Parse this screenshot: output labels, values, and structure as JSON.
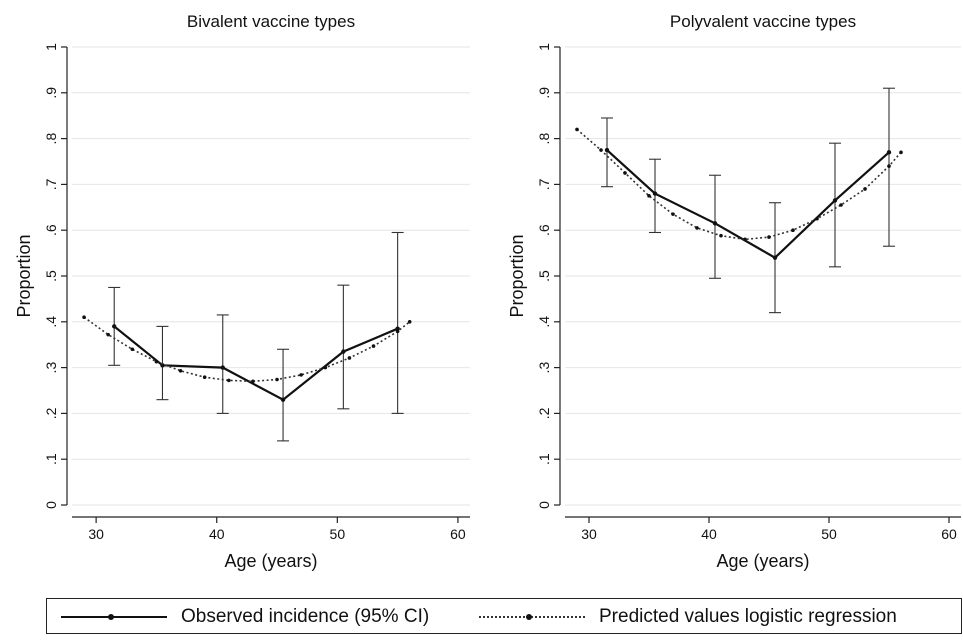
{
  "chart_data": [
    {
      "type": "line",
      "title": "Bivalent vaccine types",
      "xlabel": "Age (years)",
      "ylabel": "Proportion",
      "xlim": [
        28,
        61
      ],
      "ylim": [
        0,
        1
      ],
      "xticks": [
        30,
        40,
        50,
        60
      ],
      "xtick_labels": [
        "30",
        "40",
        "50",
        "60"
      ],
      "yticks": [
        0,
        0.1,
        0.2,
        0.3,
        0.4,
        0.5,
        0.6,
        0.7,
        0.8,
        0.9,
        1
      ],
      "ytick_labels": [
        "0",
        ".1",
        ".2",
        ".3",
        ".4",
        ".5",
        ".6",
        ".7",
        ".8",
        ".9",
        "1"
      ],
      "grid": true,
      "series": [
        {
          "name": "Observed incidence (95% CI)",
          "style": "solid",
          "x": [
            31.5,
            35.5,
            40.5,
            45.5,
            50.5,
            55
          ],
          "y": [
            0.39,
            0.305,
            0.3,
            0.23,
            0.335,
            0.385
          ],
          "ci_low": [
            0.305,
            0.23,
            0.2,
            0.14,
            0.21,
            0.2
          ],
          "ci_high": [
            0.475,
            0.39,
            0.415,
            0.34,
            0.48,
            0.595
          ]
        },
        {
          "name": "Predicted values logistic regression",
          "style": "dotted",
          "x": [
            29,
            31,
            33,
            35,
            37,
            39,
            41,
            43,
            45,
            47,
            49,
            51,
            53,
            55,
            56
          ],
          "y": [
            0.41,
            0.372,
            0.34,
            0.313,
            0.293,
            0.279,
            0.272,
            0.27,
            0.274,
            0.284,
            0.3,
            0.321,
            0.347,
            0.379,
            0.4
          ]
        }
      ]
    },
    {
      "type": "line",
      "title": "Polyvalent vaccine types",
      "xlabel": "Age (years)",
      "ylabel": "Proportion",
      "xlim": [
        28,
        61
      ],
      "ylim": [
        0,
        1
      ],
      "xticks": [
        30,
        40,
        50,
        60
      ],
      "xtick_labels": [
        "30",
        "40",
        "50",
        "60"
      ],
      "yticks": [
        0,
        0.1,
        0.2,
        0.3,
        0.4,
        0.5,
        0.6,
        0.7,
        0.8,
        0.9,
        1
      ],
      "ytick_labels": [
        "0",
        ".1",
        ".2",
        ".3",
        ".4",
        ".5",
        ".6",
        ".7",
        ".8",
        ".9",
        "1"
      ],
      "grid": true,
      "series": [
        {
          "name": "Observed incidence (95% CI)",
          "style": "solid",
          "x": [
            31.5,
            35.5,
            40.5,
            45.5,
            50.5,
            55
          ],
          "y": [
            0.775,
            0.68,
            0.615,
            0.54,
            0.665,
            0.77
          ],
          "ci_low": [
            0.695,
            0.595,
            0.495,
            0.42,
            0.52,
            0.565
          ],
          "ci_high": [
            0.845,
            0.755,
            0.72,
            0.66,
            0.79,
            0.91
          ]
        },
        {
          "name": "Predicted values logistic regression",
          "style": "dotted",
          "x": [
            29,
            31,
            33,
            35,
            37,
            39,
            41,
            43,
            45,
            47,
            49,
            51,
            53,
            55,
            56
          ],
          "y": [
            0.82,
            0.775,
            0.725,
            0.675,
            0.635,
            0.605,
            0.588,
            0.58,
            0.585,
            0.6,
            0.625,
            0.655,
            0.69,
            0.74,
            0.77
          ]
        }
      ]
    }
  ],
  "legend": {
    "observed_label": "Observed incidence (95% CI)",
    "predicted_label": "Predicted values logistic regression"
  }
}
